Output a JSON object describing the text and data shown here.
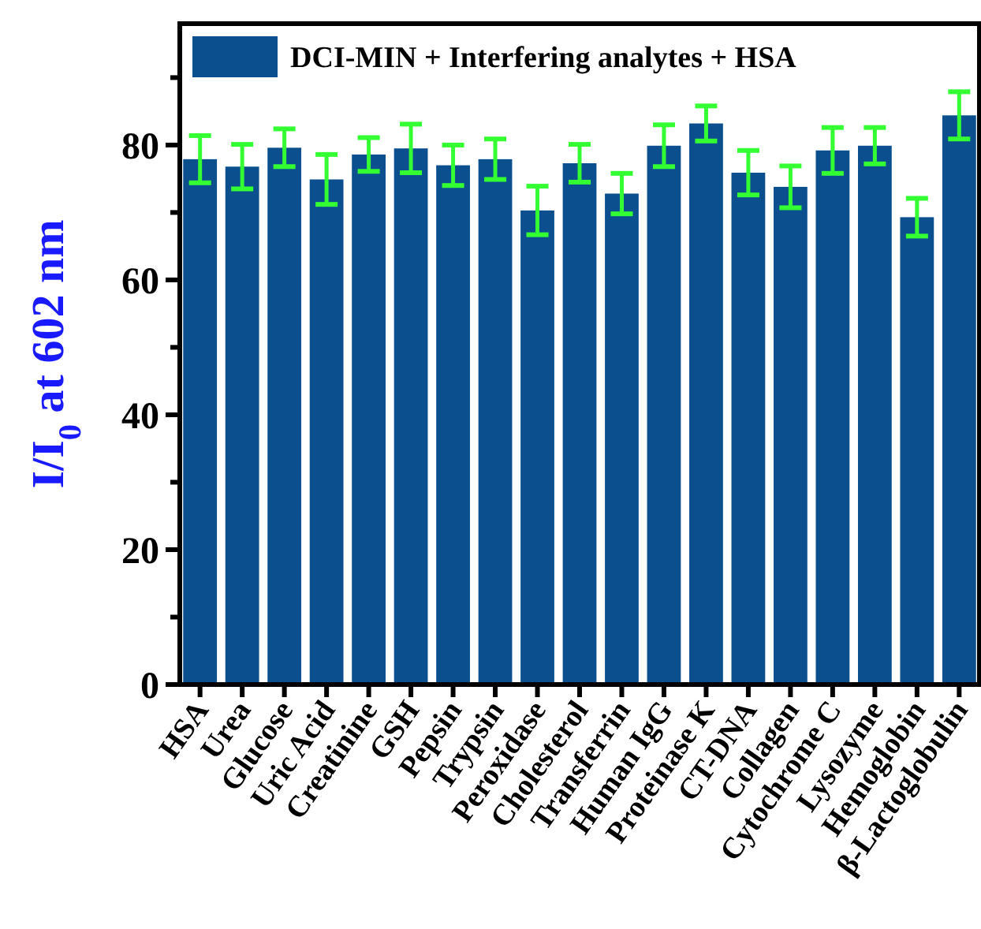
{
  "chart_data": {
    "type": "bar",
    "ylabel": "I/I$_{0}$ at 602 nm",
    "categories": [
      "HSA",
      "Urea",
      "Glucose",
      "Uric Acid",
      "Creatinine",
      "GSH",
      "Pepsin",
      "Trypsin",
      "Peroxidase",
      "Cholesterol",
      "Transferrin",
      "Human IgG",
      "Proteinase K",
      "CT-DNA",
      "Collagen",
      "Cytochrome C",
      "Lysozyme",
      "Hemoglobin",
      "β-Lactoglobulin"
    ],
    "series": [
      {
        "name": "DCI-MIN + Interfering analytes + HSA",
        "color": "#0b4f8f",
        "values": [
          77.9,
          76.8,
          79.6,
          74.9,
          78.6,
          79.5,
          77.0,
          77.9,
          70.3,
          77.3,
          72.8,
          79.9,
          83.2,
          75.9,
          73.8,
          79.2,
          79.9,
          69.3,
          84.4
        ],
        "errors": [
          3.5,
          3.3,
          2.8,
          3.7,
          2.5,
          3.6,
          3.0,
          3.0,
          3.6,
          2.8,
          3.0,
          3.1,
          2.6,
          3.3,
          3.1,
          3.4,
          2.7,
          2.8,
          3.5
        ]
      }
    ],
    "ylim": [
      0,
      98
    ],
    "yticks": [
      0,
      {
        "value": 10,
        "label": null
      },
      20,
      {
        "value": 30,
        "label": null
      },
      40,
      {
        "value": 50,
        "label": null
      },
      60,
      {
        "value": 70,
        "label": null
      },
      80,
      {
        "value": 90,
        "label": null
      }
    ],
    "grid": false,
    "legend": "top left"
  }
}
